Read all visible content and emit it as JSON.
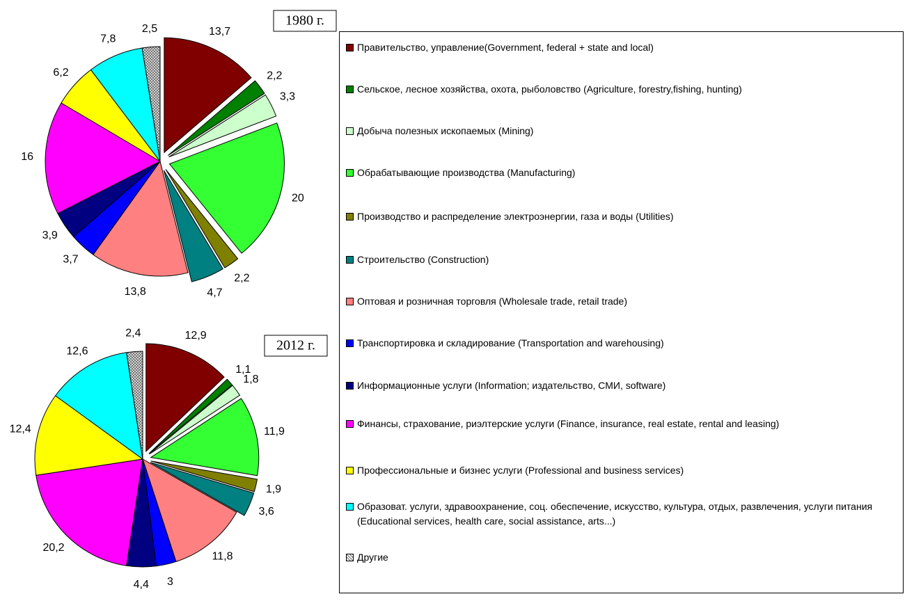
{
  "chart_data": [
    {
      "type": "pie",
      "title": "1980 г.",
      "categories": [
        "Правительство, управление(Government, federal + state and local)",
        "Сельское, лесное хозяйства, охота, рыболовство (Agriculture, forestry,fishing, hunting)",
        "Добыча полезных ископаемых (Mining)",
        "Обрабатывающие производства (Manufacturing)",
        "Производство и распределение электроэнергии, газа и воды (Utilities)",
        "Строительство (Construction)",
        "Оптовая и розничная торговля (Wholesale trade, retail trade)",
        "Транспортировка и складирование (Transportation and warehousing)",
        "Информационные услуги (Information; издательство, СМИ, software)",
        "Финансы, страхование, риэлтерские услуги (Finance, insurance, real estate, rental and leasing)",
        "Профессиональные и бизнес услуги (Professional and business services)",
        "Образоват. услуги, здравоохранение, соц. обеспечение, искусство, культура, отдых, развлечения, услуги питания (Educational services, health care, social assistance, arts...)",
        "Другие"
      ],
      "colors": [
        "#800000",
        "#008000",
        "#ccffcc",
        "#33ff33",
        "#808000",
        "#008080",
        "#ff8080",
        "#0000ff",
        "#000080",
        "#ff00ff",
        "#ffff00",
        "#00ffff",
        "#c0c0c0"
      ],
      "values": [
        13.7,
        2.2,
        3.3,
        20,
        2.2,
        4.7,
        13.8,
        3.7,
        3.9,
        16,
        6.2,
        7.8,
        2.5
      ],
      "value_labels": [
        "13,7",
        "2,2",
        "3,3",
        "20",
        "2,2",
        "4,7",
        "13,8",
        "3,7",
        "3,9",
        "16",
        "6,2",
        "7,8",
        "2,5"
      ]
    },
    {
      "type": "pie",
      "title": "2012 г.",
      "values": [
        12.9,
        1.1,
        1.8,
        11.9,
        1.9,
        3.6,
        11.8,
        3,
        4.4,
        20.2,
        12.4,
        12.6,
        2.4
      ],
      "value_labels": [
        "12,9",
        "1,1",
        "1,8",
        "11,9",
        "1,9",
        "3,6",
        "11,8",
        "3",
        "4,4",
        "20,2",
        "12,4",
        "12,6",
        "2,4"
      ]
    }
  ]
}
